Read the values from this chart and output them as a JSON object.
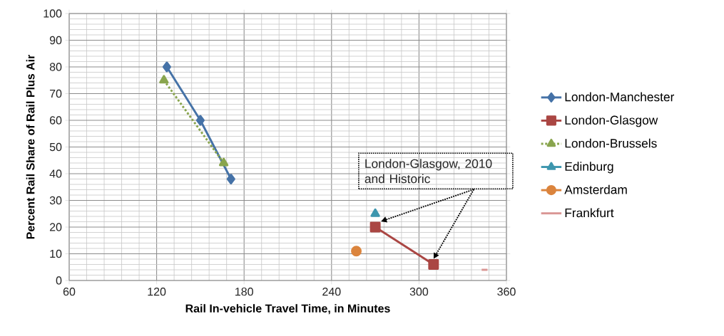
{
  "chart_data": {
    "type": "line",
    "xlabel": "Rail In-vehicle Travel Time, in Minutes",
    "ylabel": "Percent  Rail Share of Rail Plus Air",
    "xlim": [
      60,
      360
    ],
    "xticks": [
      60,
      120,
      180,
      240,
      300,
      360
    ],
    "ylim": [
      0,
      100
    ],
    "yticks": [
      0,
      10,
      20,
      30,
      40,
      50,
      60,
      70,
      80,
      90,
      100
    ],
    "grid": true,
    "legend": "right",
    "annotations": [
      "London-Glasgow, 2010 and Historic"
    ],
    "series": [
      {
        "name": "London-Manchester",
        "color": "#4572a7",
        "x": [
          127,
          150,
          171
        ],
        "values": [
          80,
          60,
          38
        ],
        "marker": "diamond",
        "line_style": "solid"
      },
      {
        "name": "London-Glasgow",
        "color": "#aa4643",
        "x": [
          310,
          270
        ],
        "values": [
          6,
          20
        ],
        "marker": "square",
        "line_style": "solid"
      },
      {
        "name": "London-Brussels",
        "color": "#89a54e",
        "x": [
          125,
          166
        ],
        "values": [
          75,
          44
        ],
        "marker": "triangle",
        "line_style": "dotted"
      },
      {
        "name": "Edinburg",
        "color": "#3d96ae",
        "x": [
          270
        ],
        "values": [
          25
        ],
        "marker": "triangle",
        "line_style": "solid"
      },
      {
        "name": "Amsterdam",
        "color": "#db843d",
        "x": [
          257
        ],
        "values": [
          11
        ],
        "marker": "circle",
        "line_style": "solid"
      },
      {
        "name": "Frankfurt",
        "color": "#d99694",
        "x": [
          343,
          347
        ],
        "values": [
          4,
          4
        ],
        "marker": "none",
        "line_style": "solid"
      }
    ]
  }
}
